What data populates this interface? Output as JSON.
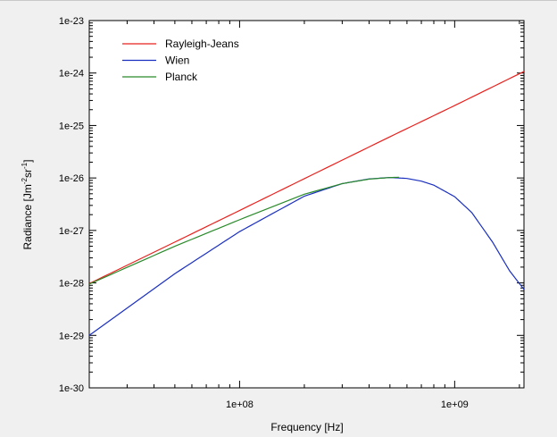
{
  "chart_data": {
    "type": "line",
    "xlabel": "Frequency [Hz]",
    "ylabel_base": "Radiance [Jm",
    "ylabel_sup1": "-2",
    "ylabel_mid": "sr",
    "ylabel_sup2": "-1",
    "ylabel_end": "]",
    "x_scale": "log",
    "y_scale": "log",
    "xlim": [
      20000000,
      2100000000
    ],
    "ylim": [
      1e-30,
      1e-23
    ],
    "x_tick_labels": [
      "1e+08",
      "1e+09"
    ],
    "y_tick_labels": [
      "1e-30",
      "1e-29",
      "1e-28",
      "1e-27",
      "1e-26",
      "1e-25",
      "1e-24",
      "1e-23"
    ],
    "grid": false,
    "legend_position": "top-left",
    "series": [
      {
        "name": "Rayleigh-Jeans",
        "color": "#e8201c",
        "x": [
          20000000,
          50000000,
          100000000,
          200000000,
          500000000,
          1000000000,
          2100000000
        ],
        "y": [
          9.7e-29,
          6e-28,
          2.4e-27,
          9.7e-27,
          6.1e-26,
          2.4e-25,
          1.07e-24
        ]
      },
      {
        "name": "Wien",
        "color": "#1a2fbf",
        "x": [
          20000000,
          50000000,
          100000000,
          200000000,
          300000000,
          400000000,
          500000000,
          600000000,
          700000000,
          800000000,
          1000000000,
          1200000000,
          1500000000,
          1800000000,
          2100000000
        ],
        "y": [
          1e-29,
          1.5e-28,
          9.5e-28,
          4.5e-27,
          7.8e-27,
          9.6e-27,
          1.02e-26,
          9.8e-27,
          8.7e-27,
          7.3e-27,
          4.4e-27,
          2.2e-27,
          6e-28,
          1.7e-28,
          7.5e-29
        ]
      },
      {
        "name": "Planck",
        "color": "#2a8a2a",
        "x": [
          20000000,
          50000000,
          100000000,
          200000000,
          300000000,
          400000000,
          500000000,
          550000000
        ],
        "y": [
          9.5e-29,
          5e-28,
          1.6e-27,
          4.9e-27,
          7.8e-27,
          9.5e-27,
          1.02e-26,
          1.03e-26
        ]
      }
    ]
  }
}
